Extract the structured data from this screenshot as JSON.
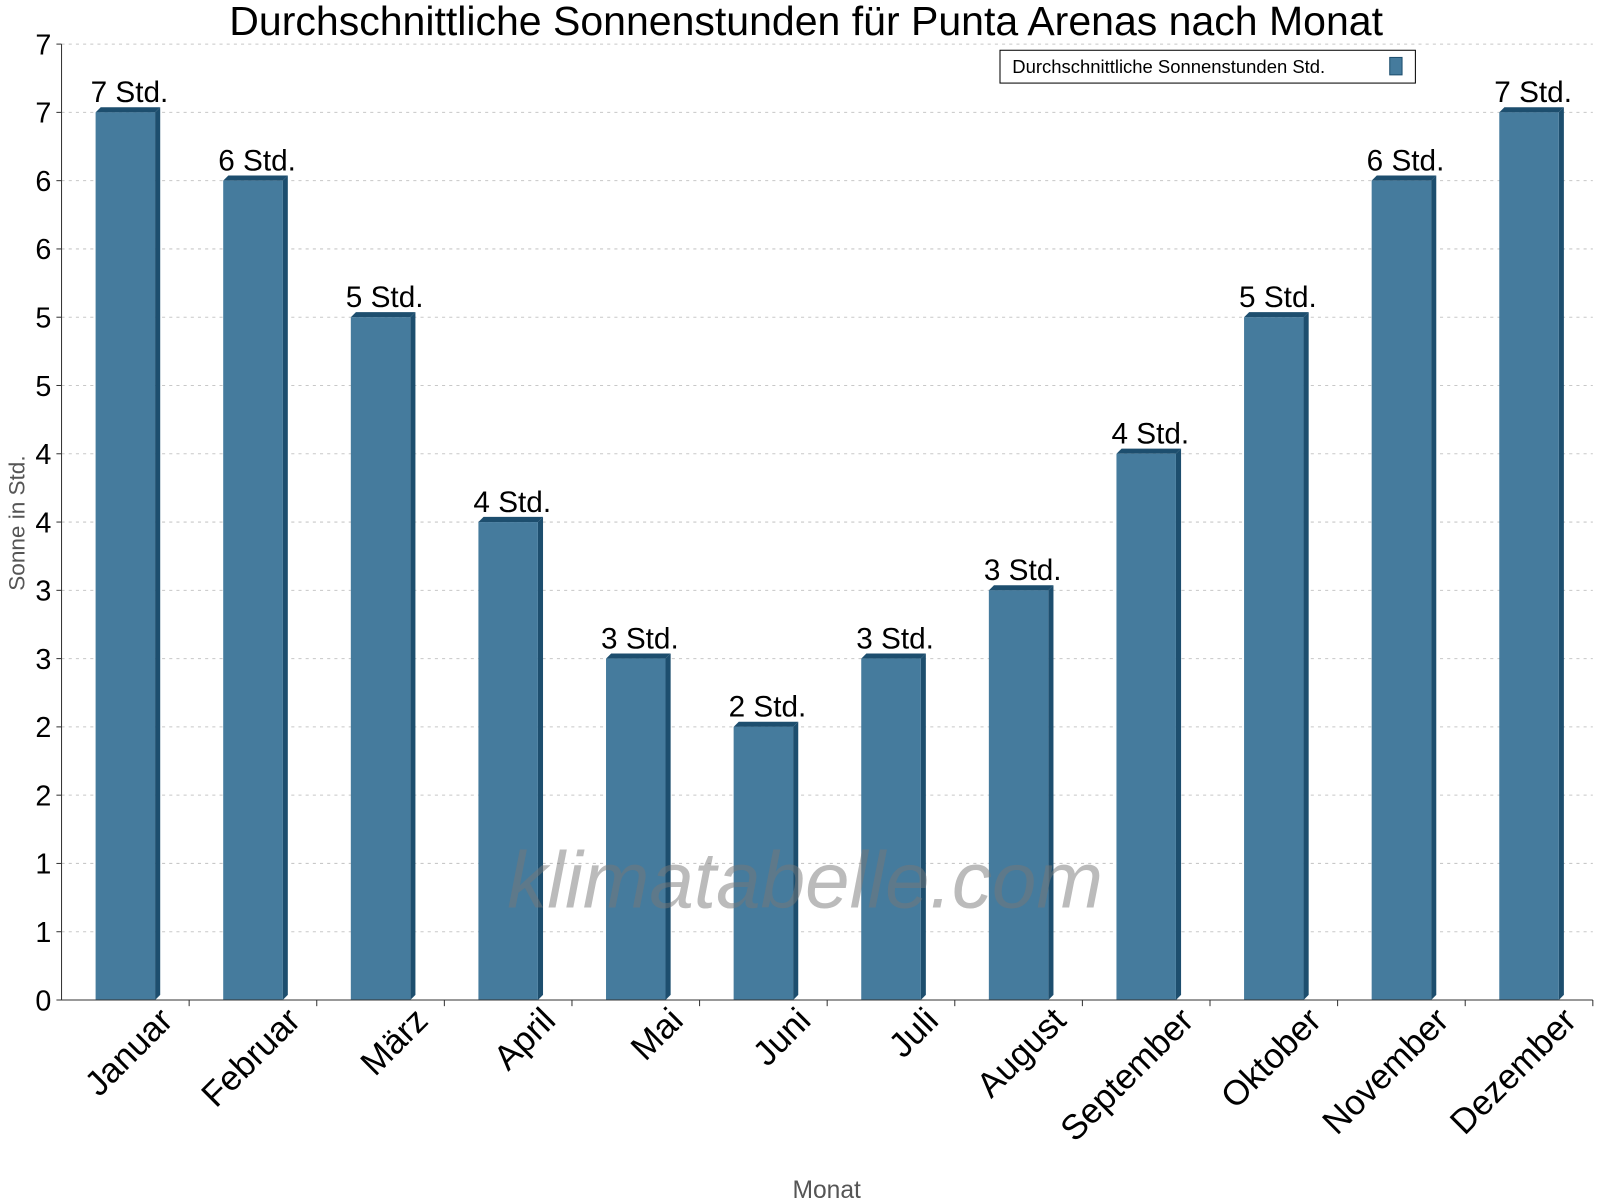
{
  "chart_data": {
    "type": "bar",
    "title": "Durchschnittliche Sonnenstunden für Punta Arenas nach Monat",
    "xlabel": "Monat",
    "ylabel": "Sonne in Std.",
    "watermark": "klimatabelle.com",
    "legend": {
      "label": "Durchschnittliche Sonnenstunden Std.",
      "position": "top-right"
    },
    "categories": [
      "Januar",
      "Februar",
      "März",
      "April",
      "Mai",
      "Juni",
      "Juli",
      "August",
      "September",
      "Oktober",
      "November",
      "Dezember"
    ],
    "values": [
      6.5,
      6.0,
      5.0,
      3.5,
      2.5,
      2.0,
      2.5,
      3.0,
      4.0,
      5.0,
      6.0,
      6.5
    ],
    "data_labels": [
      "7 Std.",
      "6 Std.",
      "5 Std.",
      "4 Std.",
      "3 Std.",
      "2 Std.",
      "3 Std.",
      "3 Std.",
      "4 Std.",
      "5 Std.",
      "6 Std.",
      "7 Std."
    ],
    "ylim": [
      0,
      7
    ],
    "yticks": [
      0,
      0.5,
      1,
      1.5,
      2,
      2.5,
      3,
      3.5,
      4,
      4.5,
      5,
      5.5,
      6,
      6.5,
      7
    ],
    "ytick_labels": [
      "0",
      "1",
      "1",
      "2",
      "2",
      "3",
      "3",
      "4",
      "4",
      "5",
      "5",
      "6",
      "6",
      "7",
      "7"
    ],
    "grid": true,
    "colors": {
      "bar": "#457b9d",
      "bar_side": "#1d4e6e",
      "grid": "#c8c8c8"
    }
  }
}
